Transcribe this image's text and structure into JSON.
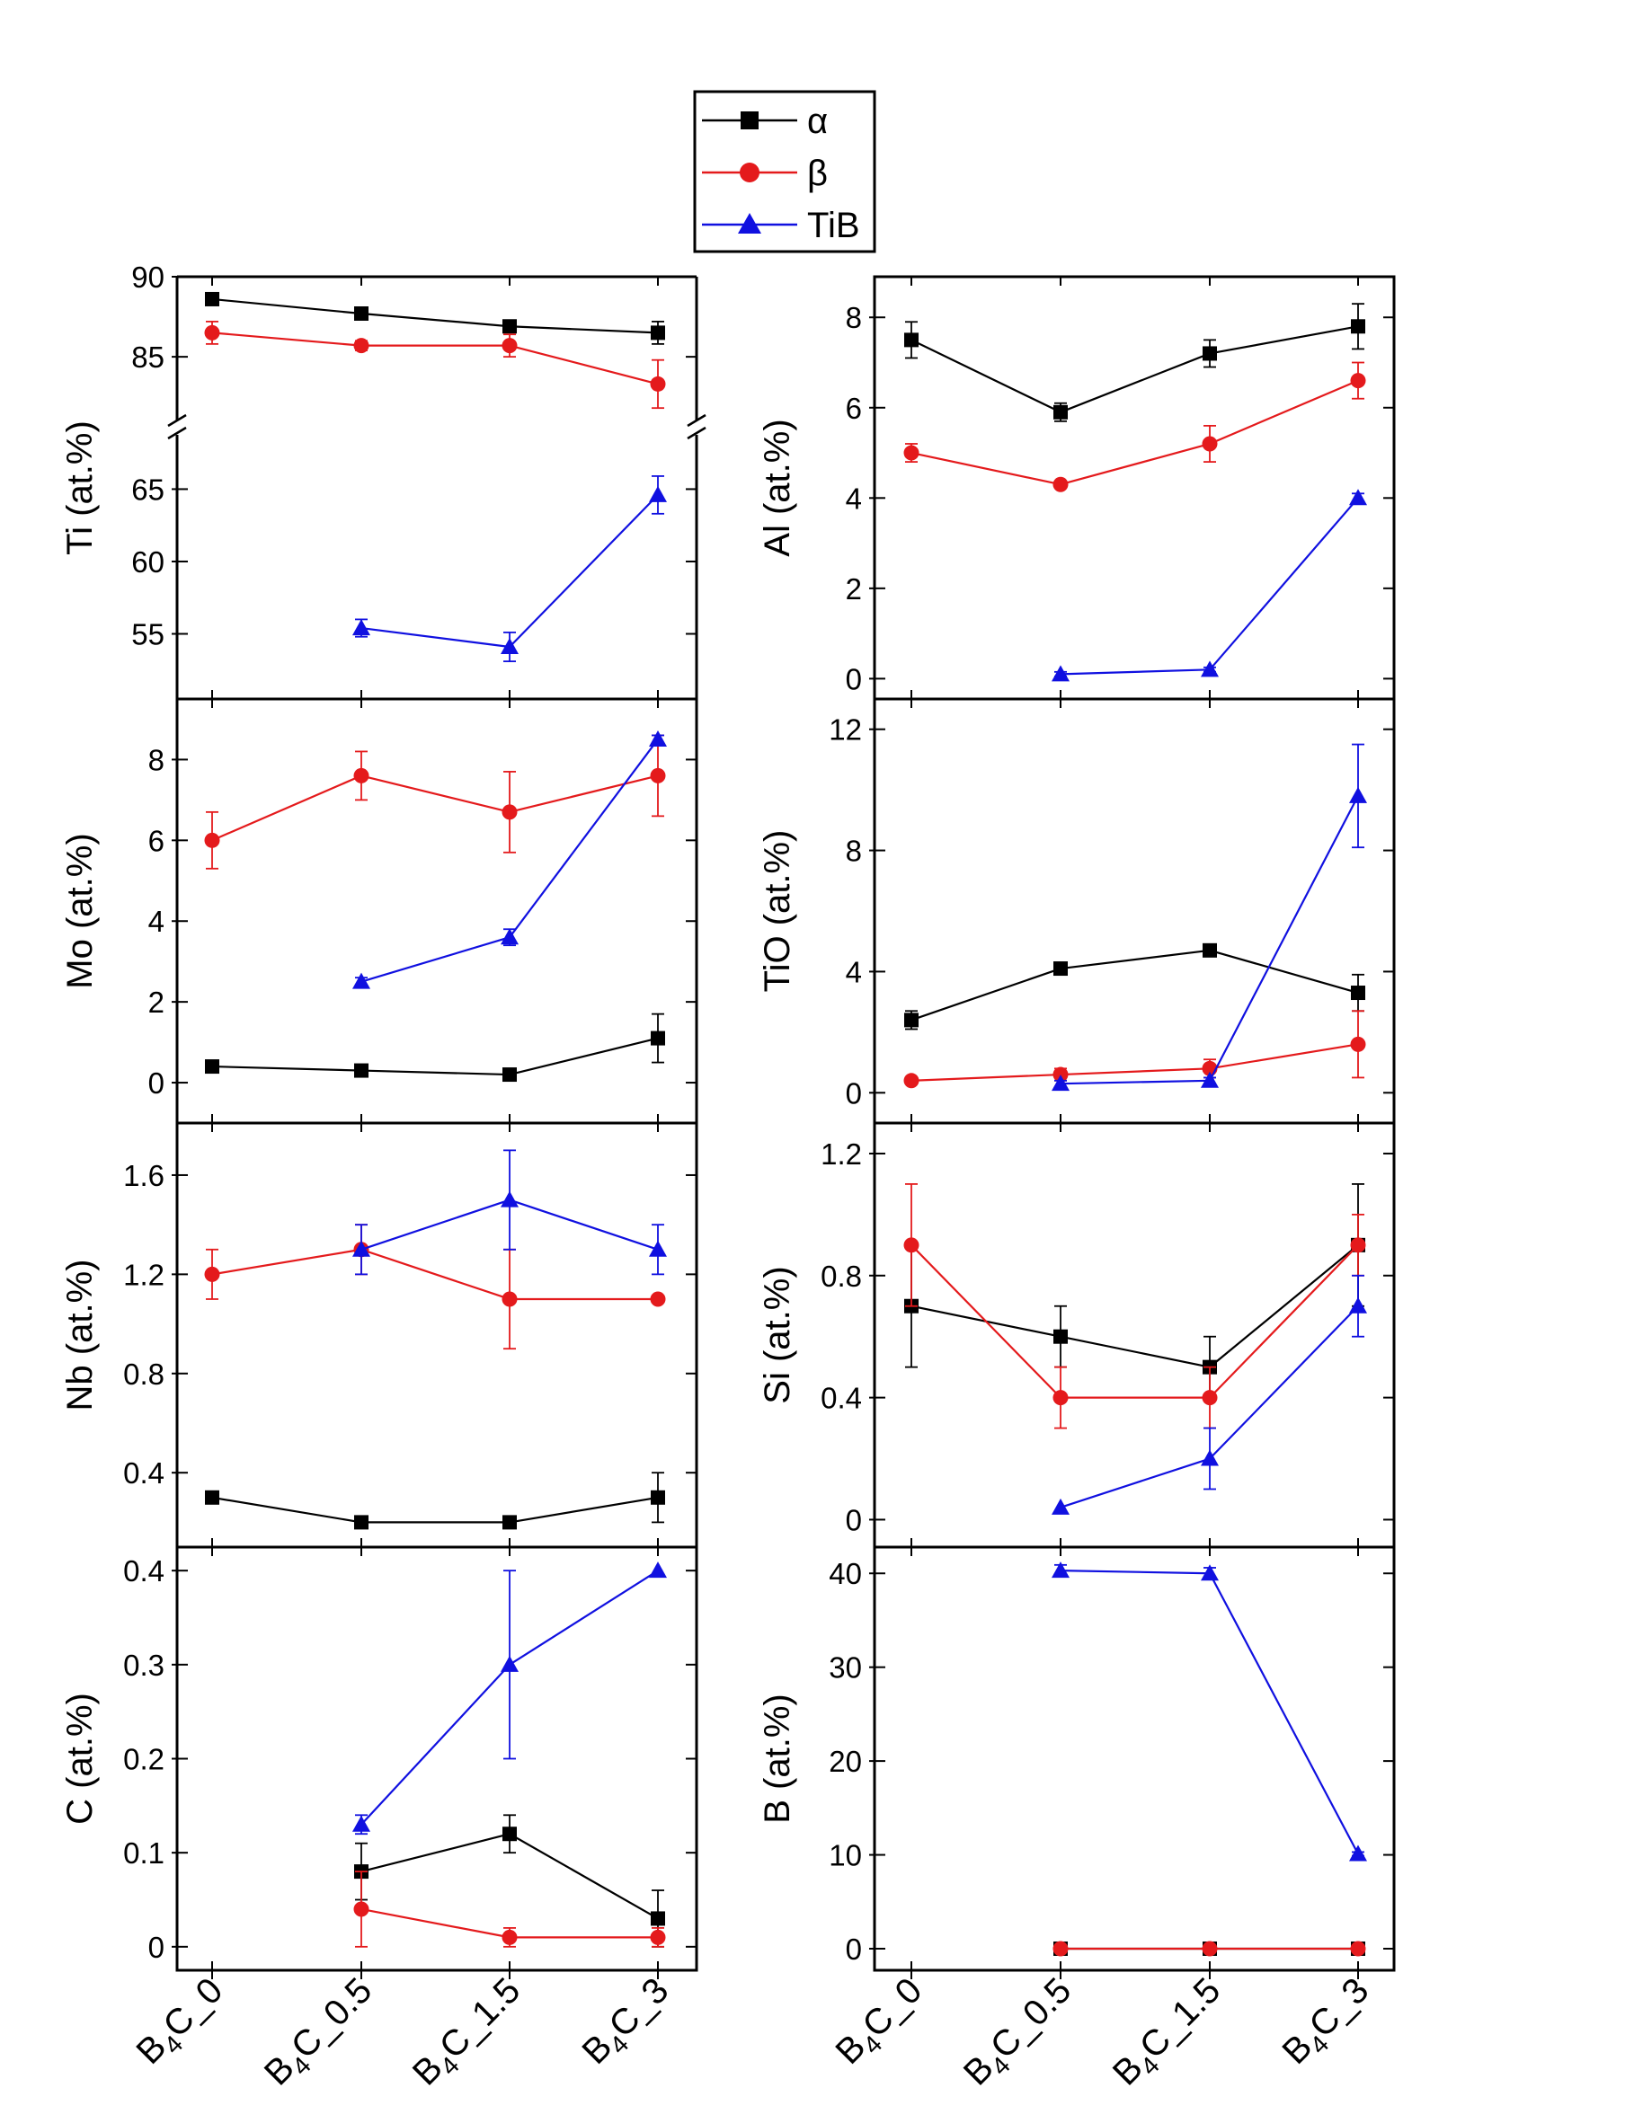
{
  "categories": [
    {
      "base": "B",
      "sub": "4",
      "rest": "C_0"
    },
    {
      "base": "B",
      "sub": "4",
      "rest": "C_0.5"
    },
    {
      "base": "B",
      "sub": "4",
      "rest": "C_1.5"
    },
    {
      "base": "B",
      "sub": "4",
      "rest": "C_3"
    }
  ],
  "legend": [
    {
      "name": "α",
      "color": "#000000",
      "marker": "square"
    },
    {
      "name": "β",
      "color": "#e41a1c",
      "marker": "circle"
    },
    {
      "name": "TiB",
      "color": "#1010e0",
      "marker": "triangle"
    }
  ],
  "chart_data": [
    {
      "id": "ti",
      "type": "line",
      "ylabel": "Ti (at.%)",
      "broken_axis": true,
      "upper": {
        "ylim": [
          80.8,
          90
        ],
        "ticks": [
          85,
          90
        ]
      },
      "lower": {
        "ylim": [
          50.5,
          69
        ],
        "ticks": [
          55,
          60,
          65
        ]
      },
      "series": [
        {
          "name": "α",
          "values": [
            88.6,
            87.7,
            86.9,
            86.5
          ],
          "errors": [
            0.3,
            0.3,
            0.3,
            0.7
          ]
        },
        {
          "name": "β",
          "values": [
            86.5,
            85.7,
            85.7,
            83.3
          ],
          "errors": [
            0.7,
            0.3,
            0.7,
            1.5
          ]
        },
        {
          "name": "TiB",
          "values": [
            null,
            55.4,
            54.1,
            64.6
          ],
          "errors": [
            null,
            0.6,
            1.0,
            1.3
          ]
        }
      ]
    },
    {
      "id": "al",
      "type": "line",
      "ylabel": "Al (at.%)",
      "ylim": [
        -0.45,
        8.9
      ],
      "ticks": [
        0,
        2,
        4,
        6,
        8
      ],
      "series": [
        {
          "name": "α",
          "values": [
            7.5,
            5.9,
            7.2,
            7.8
          ],
          "errors": [
            0.4,
            0.2,
            0.3,
            0.5
          ]
        },
        {
          "name": "β",
          "values": [
            5.0,
            4.3,
            5.2,
            6.6
          ],
          "errors": [
            0.2,
            0.0,
            0.4,
            0.4
          ]
        },
        {
          "name": "TiB",
          "values": [
            null,
            0.1,
            0.2,
            4.0
          ],
          "errors": [
            null,
            0.05,
            0.05,
            0.1
          ]
        }
      ]
    },
    {
      "id": "mo",
      "type": "line",
      "ylabel": "Mo (at.%)",
      "ylim": [
        -1.0,
        9.5
      ],
      "ticks": [
        0,
        2,
        4,
        6,
        8
      ],
      "series": [
        {
          "name": "α",
          "values": [
            0.4,
            0.3,
            0.2,
            1.1
          ],
          "errors": [
            0.1,
            0.1,
            0.1,
            0.6
          ]
        },
        {
          "name": "β",
          "values": [
            6.0,
            7.6,
            6.7,
            7.6
          ],
          "errors": [
            0.7,
            0.6,
            1.0,
            1.0
          ]
        },
        {
          "name": "TiB",
          "values": [
            null,
            2.5,
            3.6,
            8.5
          ],
          "errors": [
            null,
            0.1,
            0.2,
            0.1
          ]
        }
      ]
    },
    {
      "id": "tio",
      "type": "line",
      "ylabel": "TiO (at.%)",
      "ylim": [
        -1.0,
        13.0
      ],
      "ticks": [
        0,
        4,
        8,
        12
      ],
      "series": [
        {
          "name": "α",
          "values": [
            2.4,
            4.1,
            4.7,
            3.3
          ],
          "errors": [
            0.3,
            0.1,
            0.1,
            0.6
          ]
        },
        {
          "name": "β",
          "values": [
            0.4,
            0.6,
            0.8,
            1.6
          ],
          "errors": [
            0.1,
            0.2,
            0.3,
            1.1
          ]
        },
        {
          "name": "TiB",
          "values": [
            null,
            0.3,
            0.4,
            9.8
          ],
          "errors": [
            null,
            0.1,
            0.1,
            1.7
          ]
        }
      ]
    },
    {
      "id": "nb",
      "type": "line",
      "ylabel": "Nb (at.%)",
      "ylim": [
        0.1,
        1.81
      ],
      "ticks": [
        0.4,
        0.8,
        1.2,
        1.6
      ],
      "series": [
        {
          "name": "α",
          "values": [
            0.3,
            0.2,
            0.2,
            0.3
          ],
          "errors": [
            0.0,
            0.0,
            0.0,
            0.1
          ]
        },
        {
          "name": "β",
          "values": [
            1.2,
            1.3,
            1.1,
            1.1
          ],
          "errors": [
            0.1,
            0.1,
            0.2,
            0.0
          ]
        },
        {
          "name": "TiB",
          "values": [
            null,
            1.3,
            1.5,
            1.3
          ],
          "errors": [
            null,
            0.1,
            0.2,
            0.1
          ]
        }
      ]
    },
    {
      "id": "si",
      "type": "line",
      "ylabel": "Si (at.%)",
      "ylim": [
        -0.09,
        1.3
      ],
      "ticks": [
        0.0,
        0.4,
        0.8,
        1.2
      ],
      "series": [
        {
          "name": "α",
          "values": [
            0.7,
            0.6,
            0.5,
            0.9
          ],
          "errors": [
            0.2,
            0.1,
            0.1,
            0.2
          ]
        },
        {
          "name": "β",
          "values": [
            0.9,
            0.4,
            0.4,
            0.9
          ],
          "errors": [
            0.2,
            0.1,
            0.1,
            0.1
          ]
        },
        {
          "name": "TiB",
          "values": [
            null,
            0.04,
            0.2,
            0.7
          ],
          "errors": [
            null,
            0.0,
            0.1,
            0.1
          ]
        }
      ]
    },
    {
      "id": "c",
      "type": "line",
      "ylabel": "C (at.%)",
      "ylim": [
        -0.025,
        0.425
      ],
      "ticks": [
        0.0,
        0.1,
        0.2,
        0.3,
        0.4
      ],
      "series": [
        {
          "name": "α",
          "values": [
            null,
            0.08,
            0.12,
            0.03
          ],
          "errors": [
            null,
            0.03,
            0.02,
            0.03
          ]
        },
        {
          "name": "β",
          "values": [
            null,
            0.04,
            0.01,
            0.01
          ],
          "errors": [
            null,
            0.04,
            0.01,
            0.01
          ]
        },
        {
          "name": "TiB",
          "values": [
            null,
            0.13,
            0.3,
            0.4
          ],
          "errors": [
            null,
            0.01,
            0.1,
            0.0
          ]
        }
      ]
    },
    {
      "id": "b",
      "type": "line",
      "ylabel": "B (at.%)",
      "ylim": [
        -2.3,
        42.8
      ],
      "ticks": [
        0,
        10,
        20,
        30,
        40
      ],
      "series": [
        {
          "name": "α",
          "values": [
            null,
            0.0,
            0.0,
            0.0
          ],
          "errors": [
            null,
            0.0,
            0.0,
            0.0
          ]
        },
        {
          "name": "β",
          "values": [
            null,
            0.0,
            0.0,
            0.0
          ],
          "errors": [
            null,
            0.0,
            0.0,
            0.0
          ]
        },
        {
          "name": "TiB",
          "values": [
            null,
            40.3,
            40.0,
            10.1
          ],
          "errors": [
            null,
            0.6,
            0.6,
            0.2
          ]
        }
      ]
    }
  ]
}
